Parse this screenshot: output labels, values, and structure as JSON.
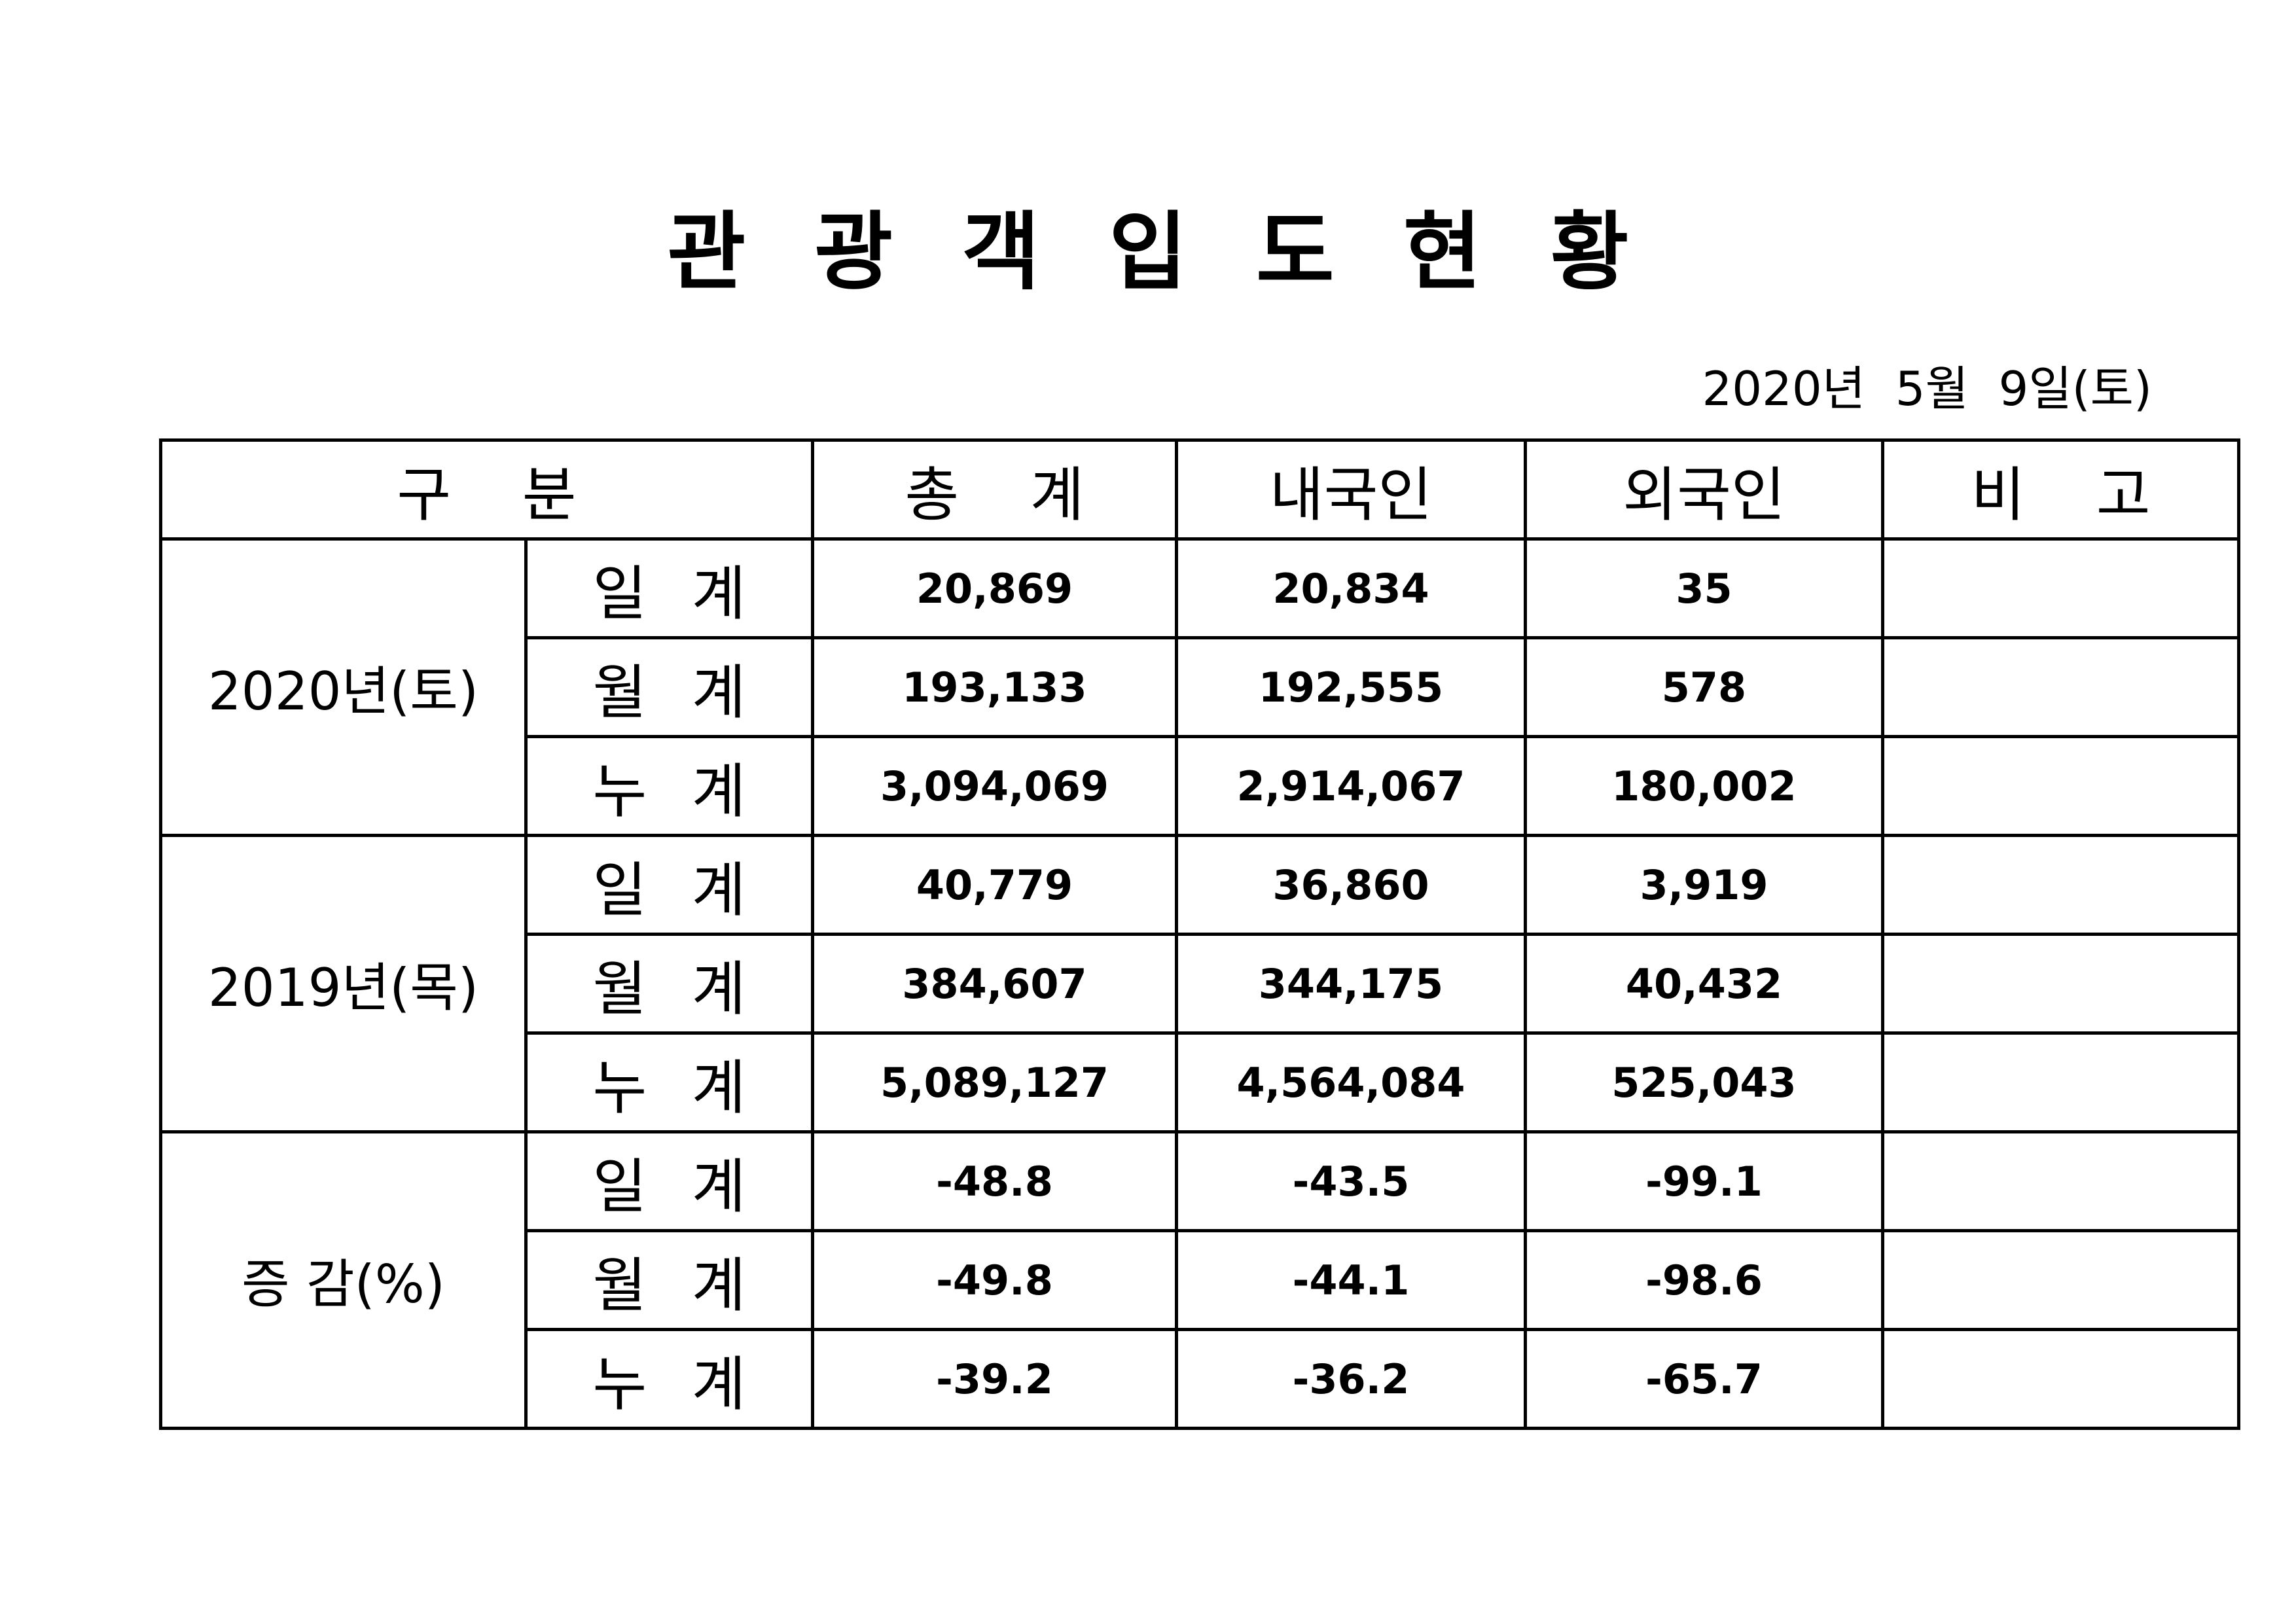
{
  "title": "관 광 객 입 도 현 황",
  "date": "2020년  5월  9일(토)",
  "table": {
    "header": [
      "구 분",
      "총 계",
      "내국인",
      "외국인",
      "비 고"
    ],
    "groups": [
      {
        "label": "2020년(토)",
        "rows": [
          {
            "label": "일 계",
            "values": [
              "20,869",
              "20,834",
              "35"
            ]
          },
          {
            "label": "월 계",
            "values": [
              "193,133",
              "192,555",
              "578"
            ]
          },
          {
            "label": "누 계",
            "values": [
              "3,094,069",
              "2,914,067",
              "180,002"
            ]
          }
        ]
      },
      {
        "label": "2019년(목)",
        "rows": [
          {
            "label": "일 계",
            "values": [
              "40,779",
              "36,860",
              "3,919"
            ]
          },
          {
            "label": "월 계",
            "values": [
              "384,607",
              "344,175",
              "40,432"
            ]
          },
          {
            "label": "누 계",
            "values": [
              "5,089,127",
              "4,564,084",
              "525,043"
            ]
          }
        ]
      },
      {
        "label": "증 감(%)",
        "rows": [
          {
            "label": "일 계",
            "values": [
              "-48.8",
              "-43.5",
              "-99.1"
            ]
          },
          {
            "label": "월 계",
            "values": [
              "-49.8",
              "-44.1",
              "-98.6"
            ]
          },
          {
            "label": "누 계",
            "values": [
              "-39.2",
              "-36.2",
              "-65.7"
            ]
          }
        ]
      }
    ]
  }
}
